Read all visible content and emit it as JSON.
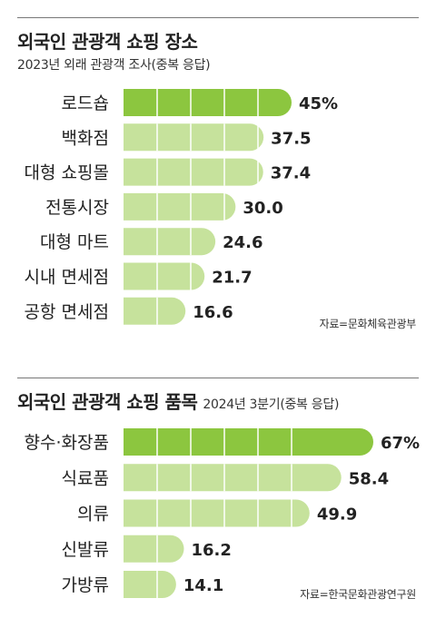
{
  "chart_data": [
    {
      "type": "bar",
      "orientation": "horizontal",
      "title": "외국인 관광객 쇼핑 장소",
      "subtitle": "2023년 외래 관광객 조사(중복 응답)",
      "source": "자료=문화체육관광부",
      "categories": [
        "로드숍",
        "백화점",
        "대형 쇼핑몰",
        "전통시장",
        "대형 마트",
        "시내 면세점",
        "공항 면세점"
      ],
      "values": [
        45,
        37.5,
        37.4,
        30.0,
        24.6,
        21.7,
        16.6
      ],
      "value_labels": [
        "45%",
        "37.5",
        "37.4",
        "30.0",
        "24.6",
        "21.7",
        "16.6"
      ],
      "highlight_index": 0
    },
    {
      "type": "bar",
      "orientation": "horizontal",
      "title": "외국인 관광객 쇼핑 품목",
      "subtitle": "2024년 3분기(중복 응답)",
      "source": "자료=한국문화관광연구원",
      "categories": [
        "향수·화장품",
        "식료품",
        "의류",
        "신발류",
        "가방류"
      ],
      "values": [
        67,
        58.4,
        49.9,
        16.2,
        14.1
      ],
      "value_labels": [
        "67%",
        "58.4",
        "49.9",
        "16.2",
        "14.1"
      ],
      "highlight_index": 0
    }
  ],
  "colors": {
    "highlight_bar": "#8cc63f",
    "bar": "#c6e29c",
    "text": "#222222",
    "rule": "#777777"
  }
}
